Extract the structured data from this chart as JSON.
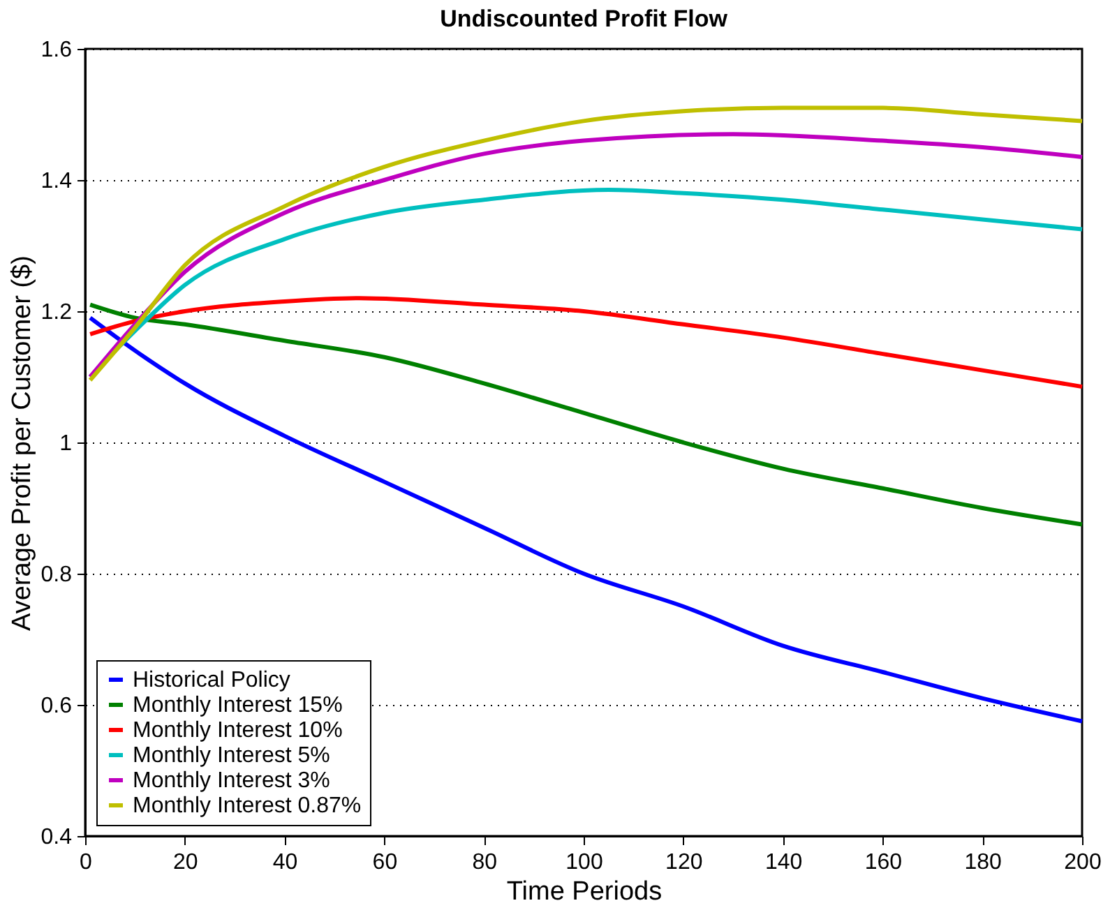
{
  "chart_data": {
    "type": "line",
    "title": "Undiscounted Profit Flow",
    "xlabel": "Time Periods",
    "ylabel": "Average Profit per Customer ($)",
    "xlim": [
      0,
      200
    ],
    "xticks": [
      0,
      20,
      40,
      60,
      80,
      100,
      120,
      140,
      160,
      180,
      200
    ],
    "ylim": [
      0.4,
      1.6
    ],
    "yticks": [
      0.4,
      0.6,
      0.8,
      1,
      1.2,
      1.4,
      1.6
    ],
    "grid": "y",
    "legend": "bottom left",
    "line_style": "solid",
    "marker": "none",
    "series": [
      {
        "name": "Historical Policy",
        "color": "#0000ff",
        "x": [
          1,
          10,
          20,
          40,
          60,
          80,
          100,
          120,
          140,
          160,
          180,
          200
        ],
        "values": [
          1.19,
          1.14,
          1.09,
          1.01,
          0.94,
          0.87,
          0.8,
          0.75,
          0.69,
          0.65,
          0.61,
          0.575
        ]
      },
      {
        "name": "Monthly Interest 15%",
        "color": "#008000",
        "x": [
          1,
          10,
          20,
          40,
          60,
          80,
          100,
          120,
          140,
          160,
          180,
          200
        ],
        "values": [
          1.21,
          1.19,
          1.18,
          1.155,
          1.13,
          1.09,
          1.045,
          1.0,
          0.96,
          0.93,
          0.9,
          0.875
        ]
      },
      {
        "name": "Monthly Interest 10%",
        "color": "#ff0000",
        "x": [
          1,
          10,
          20,
          40,
          55,
          80,
          100,
          120,
          140,
          160,
          180,
          200
        ],
        "values": [
          1.165,
          1.185,
          1.2,
          1.215,
          1.22,
          1.21,
          1.2,
          1.18,
          1.16,
          1.135,
          1.11,
          1.085
        ]
      },
      {
        "name": "Monthly Interest 5%",
        "color": "#00bfbf",
        "x": [
          1,
          10,
          20,
          40,
          60,
          80,
          105,
          120,
          140,
          160,
          180,
          200
        ],
        "values": [
          1.1,
          1.17,
          1.24,
          1.31,
          1.35,
          1.37,
          1.385,
          1.38,
          1.37,
          1.355,
          1.34,
          1.325
        ]
      },
      {
        "name": "Monthly Interest 3%",
        "color": "#bf00bf",
        "x": [
          1,
          10,
          20,
          40,
          60,
          80,
          100,
          130,
          160,
          180,
          200
        ],
        "values": [
          1.1,
          1.18,
          1.26,
          1.35,
          1.4,
          1.44,
          1.46,
          1.47,
          1.46,
          1.45,
          1.435
        ]
      },
      {
        "name": "Monthly Interest 0.87%",
        "color": "#bfbf00",
        "x": [
          1,
          10,
          20,
          40,
          60,
          80,
          100,
          120,
          140,
          160,
          180,
          200
        ],
        "values": [
          1.095,
          1.175,
          1.27,
          1.36,
          1.42,
          1.46,
          1.49,
          1.505,
          1.51,
          1.51,
          1.5,
          1.49
        ]
      }
    ]
  }
}
